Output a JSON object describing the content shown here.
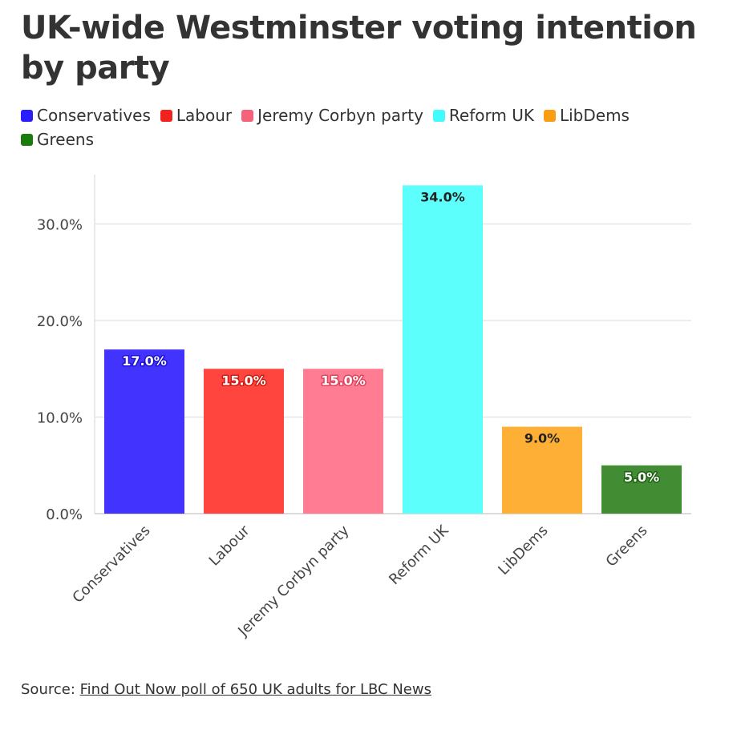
{
  "title": "UK-wide Westminster voting intention by party",
  "legend": [
    {
      "label": "Conservatives",
      "color": "#2a1eff"
    },
    {
      "label": "Labour",
      "color": "#f0231e"
    },
    {
      "label": "Jeremy Corbyn party",
      "color": "#f6627a"
    },
    {
      "label": "Reform UK",
      "color": "#42fbff"
    },
    {
      "label": "LibDems",
      "color": "#fa9d12"
    },
    {
      "label": "Greens",
      "color": "#1b7b0f"
    }
  ],
  "chart_data": {
    "type": "bar",
    "categories": [
      "Conservatives",
      "Labour",
      "Jeremy Corbyn party",
      "Reform UK",
      "LibDems",
      "Greens"
    ],
    "values": [
      17.0,
      15.0,
      15.0,
      34.0,
      9.0,
      5.0
    ],
    "data_labels": [
      "17.0%",
      "15.0%",
      "15.0%",
      "34.0%",
      "9.0%",
      "5.0%"
    ],
    "bar_colors": [
      "#4233ff",
      "#ff453d",
      "#ff7c93",
      "#5dfffc",
      "#fdaf36",
      "#428d33"
    ],
    "label_text_colors": [
      "#ffffff",
      "#ffffff",
      "#ffffff",
      "#222222",
      "#222222",
      "#ffffff"
    ],
    "label_outline_colors": [
      "#1a0fd0",
      "#cc1a12",
      "#e0405a",
      "#5dfffc",
      "#fdaf36",
      "#1f5f14"
    ],
    "yticks": [
      0,
      10,
      20,
      30
    ],
    "ytick_labels": [
      "0.0%",
      "10.0%",
      "20.0%",
      "30.0%"
    ],
    "ylim": [
      0,
      35
    ],
    "xlabel": "",
    "ylabel": "",
    "grid": true
  },
  "source": {
    "prefix": "Source: ",
    "link_text": "Find Out Now poll of 650 UK adults for LBC News"
  }
}
